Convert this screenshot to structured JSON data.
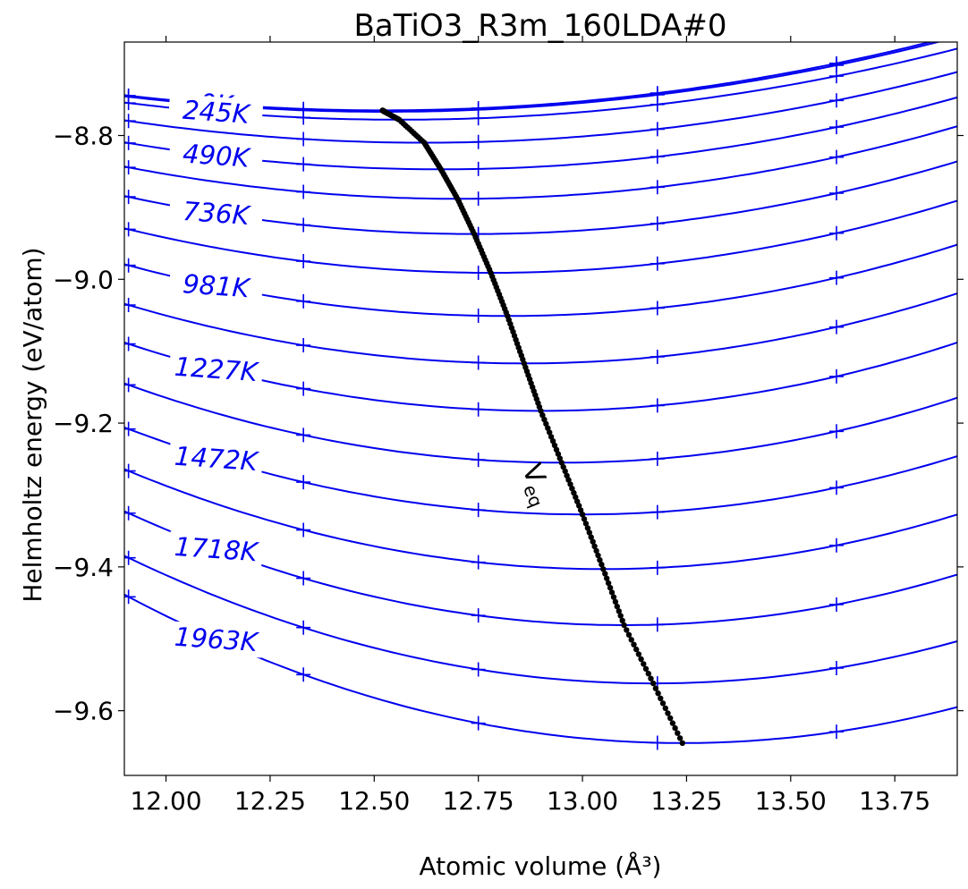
{
  "chart_data": {
    "type": "line",
    "title": "BaTiO3_R3m_160LDA#0",
    "xlabel": "Atomic volume (Å³)",
    "ylabel": "Helmholtz energy (eV/atom)",
    "xlim": [
      11.9,
      13.9
    ],
    "ylim": [
      -9.69,
      -8.67
    ],
    "xticks": [
      12.0,
      12.25,
      12.5,
      12.75,
      13.0,
      13.25,
      13.5,
      13.75
    ],
    "xtick_labels": [
      "12.00",
      "12.25",
      "12.50",
      "12.75",
      "13.00",
      "13.25",
      "13.50",
      "13.75"
    ],
    "yticks": [
      -8.8,
      -9.0,
      -9.2,
      -9.4,
      -9.6
    ],
    "ytick_labels": [
      "−8.8",
      "−9.0",
      "−9.2",
      "−9.4",
      "−9.6"
    ],
    "grid": false,
    "line_color": "#0000ee",
    "veq_color": "#000000",
    "sample_volumes": [
      11.91,
      12.33,
      12.75,
      13.18,
      13.61
    ],
    "isotherm_model": {
      "temperatures": [
        0,
        123,
        245,
        368,
        490,
        613,
        736,
        858,
        981,
        1104,
        1227,
        1349,
        1472,
        1595,
        1718,
        1840,
        1963
      ],
      "min_energy": [
        -8.765,
        -8.767,
        -8.778,
        -8.81,
        -8.847,
        -8.888,
        -8.937,
        -8.991,
        -9.051,
        -9.117,
        -9.183,
        -9.255,
        -9.327,
        -9.403,
        -9.481,
        -9.562,
        -9.645
      ],
      "v_eq": [
        12.52,
        12.525,
        12.56,
        12.62,
        12.66,
        12.7,
        12.74,
        12.78,
        12.82,
        12.86,
        12.9,
        12.95,
        13.0,
        13.05,
        13.1,
        13.17,
        13.24
      ],
      "curvature": [
        0.055,
        0.055,
        0.055,
        0.06,
        0.065,
        0.07,
        0.075,
        0.08,
        0.085,
        0.09,
        0.095,
        0.1,
        0.1,
        0.105,
        0.11,
        0.11,
        0.115
      ]
    },
    "isotherm_labels": [
      {
        "text": "0K",
        "temperature": 0
      },
      {
        "text": "245K",
        "temperature": 245
      },
      {
        "text": "490K",
        "temperature": 490
      },
      {
        "text": "736K",
        "temperature": 736
      },
      {
        "text": "981K",
        "temperature": 981
      },
      {
        "text": "1227K",
        "temperature": 1227
      },
      {
        "text": "1472K",
        "temperature": 1472
      },
      {
        "text": "1718K",
        "temperature": 1718
      },
      {
        "text": "1963K",
        "temperature": 1963
      }
    ],
    "veq_label": "V",
    "veq_label_sub": "eq"
  }
}
